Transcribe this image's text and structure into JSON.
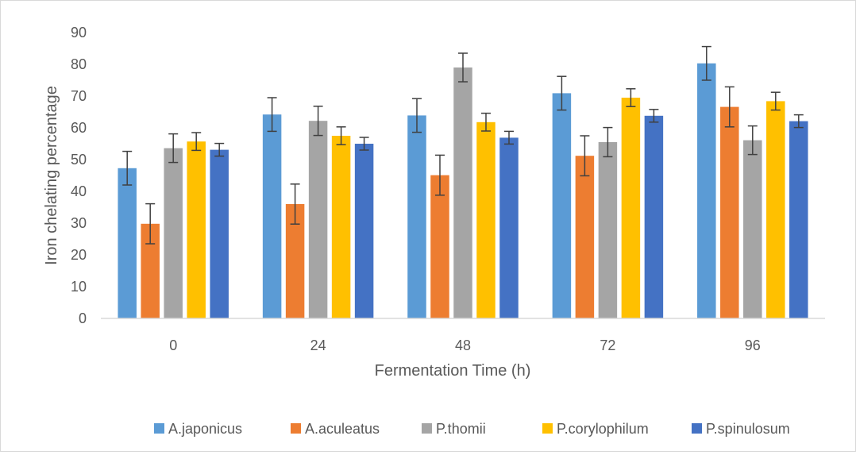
{
  "chart_data": {
    "type": "bar",
    "title": "",
    "xlabel": "Fermentation Time (h)",
    "ylabel": "Iron chelating percentage",
    "ylim": [
      0,
      90
    ],
    "yticks": [
      "0",
      "10",
      "20",
      "30",
      "40",
      "50",
      "60",
      "70",
      "80",
      "90"
    ],
    "categories": [
      "0",
      "24",
      "48",
      "72",
      "96"
    ],
    "grid": false,
    "legend_position": "bottom",
    "error_bars": true,
    "series": [
      {
        "name": "A.japonicus",
        "color": "#5B9BD5",
        "values": [
          47.3,
          64.2,
          63.9,
          70.9,
          80.3
        ],
        "errors": [
          5.3,
          5.3,
          5.3,
          5.3,
          5.3
        ]
      },
      {
        "name": "A.aculeatus",
        "color": "#ED7D31",
        "values": [
          29.8,
          36.0,
          45.1,
          51.2,
          66.6
        ],
        "errors": [
          6.3,
          6.3,
          6.3,
          6.3,
          6.3
        ]
      },
      {
        "name": "P.thomii",
        "color": "#A5A5A5",
        "values": [
          53.6,
          62.2,
          79.0,
          55.5,
          56.1
        ],
        "errors": [
          4.5,
          4.6,
          4.5,
          4.6,
          4.5
        ]
      },
      {
        "name": "P.corylophilum",
        "color": "#FFC000",
        "values": [
          55.7,
          57.5,
          61.8,
          69.5,
          68.4
        ],
        "errors": [
          2.8,
          2.8,
          2.8,
          2.8,
          2.8
        ]
      },
      {
        "name": "P.spinulosum",
        "color": "#4472C4",
        "values": [
          53.1,
          55.0,
          56.9,
          63.8,
          62.1
        ],
        "errors": [
          2.0,
          2.0,
          2.0,
          2.0,
          2.0
        ]
      }
    ]
  }
}
